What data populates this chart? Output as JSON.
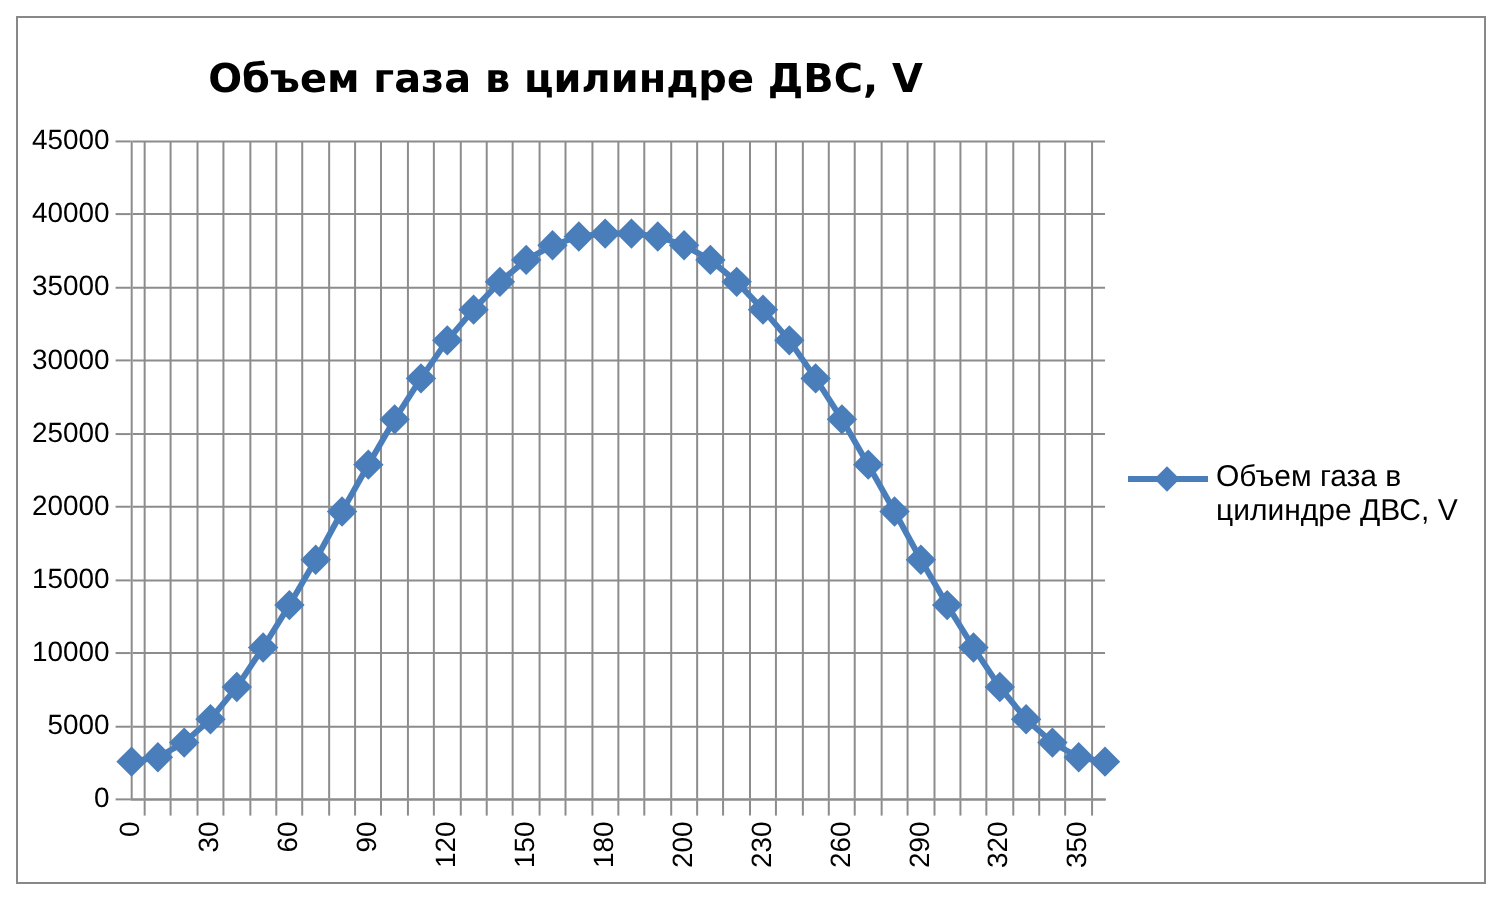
{
  "chart_data": {
    "type": "line",
    "title": "Объем газа в цилиндре ДВС, V",
    "categories": [
      "0",
      null,
      null,
      "30",
      null,
      null,
      "60",
      null,
      null,
      "90",
      null,
      null,
      "120",
      null,
      null,
      "150",
      null,
      null,
      "180",
      null,
      null,
      "200",
      null,
      null,
      "230",
      null,
      null,
      "260",
      null,
      null,
      "290",
      null,
      null,
      "320",
      null,
      null,
      "350",
      null
    ],
    "series": [
      {
        "name": "Объем газа в цилиндре ДВС, V",
        "color": "#4a7ebb",
        "values": [
          2600,
          2900,
          3900,
          5500,
          7700,
          10400,
          13300,
          16400,
          19700,
          22900,
          26000,
          28800,
          31400,
          33500,
          35400,
          36900,
          37900,
          38500,
          38700,
          38700,
          38500,
          37900,
          36900,
          35400,
          33500,
          31400,
          28800,
          26000,
          22900,
          19700,
          16400,
          13300,
          10400,
          7700,
          5500,
          3900,
          2900,
          2600
        ]
      }
    ],
    "ylim": [
      0,
      45000
    ],
    "yticks": [
      0,
      5000,
      10000,
      15000,
      20000,
      25000,
      30000,
      35000,
      40000,
      45000
    ],
    "grid": true,
    "legend": "right",
    "marker": "diamond",
    "line_style": "solid"
  }
}
